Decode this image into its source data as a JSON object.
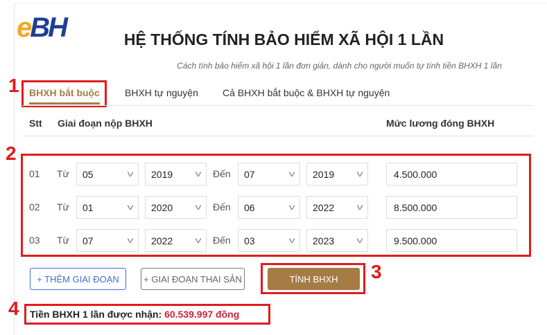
{
  "logo": {
    "e": "e",
    "bh": "BH"
  },
  "header": {
    "title": "HỆ THỐNG TÍNH BẢO HIỂM XÃ HỘI 1 LẦN",
    "subtitle": "Cách tính bảo hiểm xã hội 1 lần đơn giản, dành cho người muốn tự tính tiền BHXH 1 lần"
  },
  "tabs": [
    {
      "label": "BHXH bắt buộc",
      "active": true
    },
    {
      "label": "BHXH tự nguyện"
    },
    {
      "label": "Cả BHXH bắt buộc & BHXH tự nguyện"
    }
  ],
  "table": {
    "headers": {
      "stt": "Stt",
      "period": "Giai đoạn nộp BHXH",
      "salary": "Mức lương đóng BHXH"
    },
    "from_label": "Từ",
    "to_label": "Đến",
    "rows": [
      {
        "stt": "01",
        "from_month": "05",
        "from_year": "2019",
        "to_month": "07",
        "to_year": "2019",
        "salary": "4.500.000"
      },
      {
        "stt": "02",
        "from_month": "01",
        "from_year": "2020",
        "to_month": "06",
        "to_year": "2022",
        "salary": "8.500.000"
      },
      {
        "stt": "03",
        "from_month": "07",
        "from_year": "2022",
        "to_month": "03",
        "to_year": "2023",
        "salary": "9.500.000"
      }
    ]
  },
  "buttons": {
    "add_period": "+ THÊM GIAI ĐOẠN",
    "maternity": "+ GIAI ĐOẠN THAI SẢN",
    "calculate": "TÍNH BHXH"
  },
  "result": {
    "label": "Tiền BHXH 1 lần được nhận:",
    "value": "60.539.997 đồng"
  },
  "annotations": [
    "1",
    "2",
    "3",
    "4"
  ],
  "colors": {
    "accent": "#a67c45",
    "annotation": "#e21b1b",
    "result": "#d0213a",
    "primary": "#3b6fd4"
  }
}
